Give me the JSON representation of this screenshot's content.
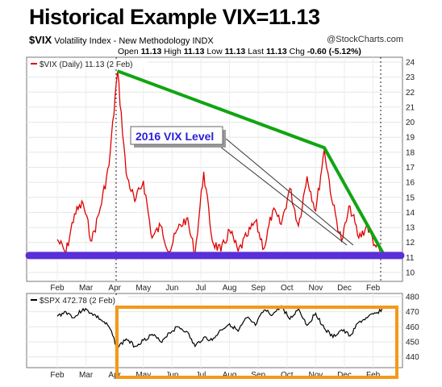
{
  "header": {
    "title": "Historical Example  VIX=11.13",
    "symbol": "$VIX",
    "description": "Volatility Index - New Methodology",
    "exchange": "INDX",
    "credit": "@StockCharts.com",
    "ohlc": {
      "open_label": "Open",
      "open": "11.13",
      "high_label": "High",
      "high": "11.13",
      "low_label": "Low",
      "low": "11.13",
      "last_label": "Last",
      "last": "11.13",
      "chg_label": "Chg",
      "chg": "-0.60 (-5.12%)"
    }
  },
  "colors": {
    "vix_line": "#e00000",
    "spx_line": "#000000",
    "trendline": "#11a511",
    "level_line": "#5a2fd6",
    "highlight_box": "#f29a1a",
    "annotation_text": "#2b1fd6"
  },
  "chart_data": [
    {
      "type": "line",
      "legend": "$VIX (Daily) 11.13 (2 Feb)",
      "x_labels": [
        "Feb",
        "Mar",
        "Apr",
        "May",
        "Jun",
        "Jul",
        "Aug",
        "Sep",
        "Oct",
        "Nov",
        "Dec",
        "Feb"
      ],
      "ylim": [
        10,
        24
      ],
      "y_ticks": [
        10,
        11,
        12,
        13,
        14,
        15,
        16,
        17,
        18,
        19,
        20,
        21,
        22,
        23,
        24
      ],
      "grid": true,
      "series": [
        {
          "name": "$VIX",
          "x": [
            0,
            0.3,
            0.6,
            0.9,
            1.2,
            1.5,
            1.8,
            2.1,
            2.4,
            2.7,
            3.0,
            3.3,
            3.6,
            3.9,
            4.2,
            4.5,
            4.8,
            5.1,
            5.4,
            5.7,
            6.0,
            6.3,
            6.6,
            6.9,
            7.2,
            7.5,
            7.8,
            8.1,
            8.4,
            8.7,
            9.0,
            9.3,
            9.6,
            9.9,
            10.2,
            10.5,
            10.8,
            11.1,
            11.4
          ],
          "values": [
            12.2,
            11.3,
            13.9,
            14.6,
            12.1,
            14.3,
            17.1,
            23.4,
            16.6,
            14.7,
            16.1,
            12.3,
            13.1,
            11.4,
            12.9,
            13.6,
            11.3,
            16.7,
            12.1,
            11.4,
            12.8,
            11.4,
            12.4,
            13.4,
            11.6,
            14.1,
            13.2,
            15.6,
            13.1,
            16.4,
            14.1,
            18.2,
            14.5,
            12.1,
            14.4,
            12.3,
            13.1,
            11.7,
            11.1
          ]
        }
      ],
      "annotations": [
        {
          "text": "2016 VIX Level"
        }
      ],
      "trendline": {
        "from": {
          "x": 2.1,
          "y": 23.4
        },
        "via": {
          "x": 9.3,
          "y": 18.3
        },
        "to": {
          "x": 11.4,
          "y": 11.1
        }
      },
      "horizontal_level": 11.13
    },
    {
      "type": "line",
      "legend": "$SPX 472.78 (2 Feb)",
      "x_labels": [
        "Feb",
        "Mar",
        "Apr",
        "May",
        "Jun",
        "Jul",
        "Aug",
        "Sep",
        "Oct",
        "Nov",
        "Dec",
        "Feb"
      ],
      "ylim": [
        435,
        480
      ],
      "y_ticks": [
        440,
        450,
        460,
        470,
        480
      ],
      "series": [
        {
          "name": "$SPX",
          "x": [
            0,
            0.3,
            0.6,
            0.9,
            1.2,
            1.5,
            1.8,
            2.1,
            2.4,
            2.7,
            3.0,
            3.3,
            3.6,
            3.9,
            4.2,
            4.5,
            4.8,
            5.1,
            5.4,
            5.7,
            6.0,
            6.3,
            6.6,
            6.9,
            7.2,
            7.5,
            7.8,
            8.1,
            8.4,
            8.7,
            9.0,
            9.3,
            9.6,
            9.9,
            10.2,
            10.5,
            10.8,
            11.1,
            11.4
          ],
          "values": [
            467,
            470,
            466,
            472,
            469,
            465,
            460,
            446,
            452,
            447,
            451,
            455,
            450,
            456,
            460,
            457,
            447,
            453,
            451,
            458,
            462,
            457,
            466,
            461,
            471,
            468,
            474,
            465,
            472,
            461,
            469,
            459,
            453,
            458,
            454,
            463,
            466,
            469,
            472.78
          ]
        }
      ]
    }
  ]
}
